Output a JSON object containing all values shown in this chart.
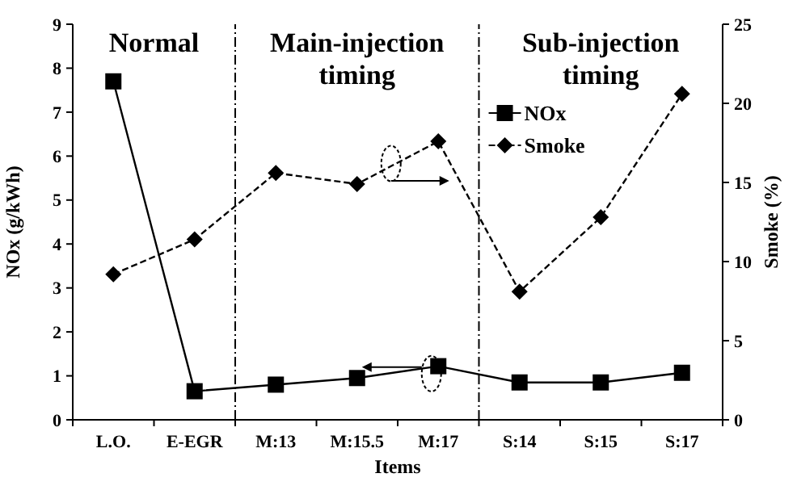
{
  "chart_data": {
    "type": "line",
    "xlabel": "Items",
    "ylabel": "NOx (g/kWh)",
    "y2label": "Smoke (%)",
    "categories": [
      "L.O.",
      "E-EGR",
      "M:13",
      "M:15.5",
      "M:17",
      "S:14",
      "S:15",
      "S:17"
    ],
    "series": [
      {
        "name": "NOx",
        "color": "#000000",
        "marker": "square",
        "line_style": "solid",
        "values": [
          7.7,
          0.65,
          0.8,
          0.95,
          1.22,
          0.85,
          0.85,
          1.07
        ]
      },
      {
        "name": "Smoke",
        "color": "#000000",
        "marker": "diamond",
        "line_style": "dashed",
        "axis": "y2",
        "values": [
          9.2,
          11.4,
          15.6,
          14.9,
          17.6,
          8.1,
          12.8,
          20.6
        ]
      }
    ],
    "ylim": [
      0,
      9
    ],
    "yticks": [
      0,
      1,
      2,
      3,
      4,
      5,
      6,
      7,
      8,
      9
    ],
    "y2lim": [
      0,
      25
    ],
    "y2ticks": [
      0,
      5,
      10,
      15,
      20,
      25
    ],
    "annotations": [
      "Normal",
      "Main-injection timing",
      "Sub-injection timing"
    ],
    "legend": "top right"
  }
}
